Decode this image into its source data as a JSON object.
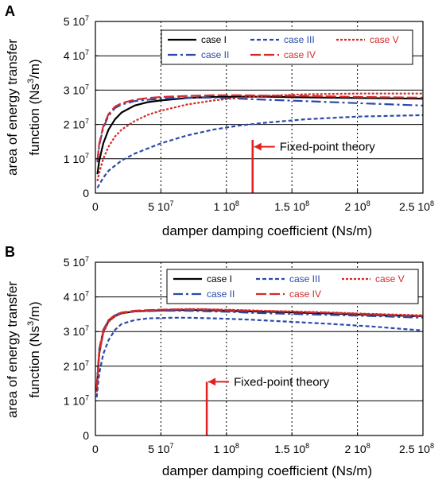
{
  "chart_data": [
    {
      "type": "line",
      "panel": "A",
      "xlabel": "damper damping coefficient (Ns/m)",
      "ylabel": [
        "area of energy transfer",
        "function (Ns",
        "3",
        "/m)"
      ],
      "xlim": [
        0,
        250000000
      ],
      "ylim": [
        0,
        50000000
      ],
      "xticks": [
        {
          "v": 0,
          "m": "0",
          "e": ""
        },
        {
          "v": 50000000,
          "m": "5 10",
          "e": "7"
        },
        {
          "v": 100000000,
          "m": "1 10",
          "e": "8"
        },
        {
          "v": 150000000,
          "m": "1.5 10",
          "e": "8"
        },
        {
          "v": 200000000,
          "m": "2 10",
          "e": "8"
        },
        {
          "v": 250000000,
          "m": "2.5 10",
          "e": "8"
        }
      ],
      "yticks": [
        {
          "v": 0,
          "m": "0",
          "e": ""
        },
        {
          "v": 10000000,
          "m": "1 10",
          "e": "7"
        },
        {
          "v": 20000000,
          "m": "2 10",
          "e": "7"
        },
        {
          "v": 30000000,
          "m": "3 10",
          "e": "7"
        },
        {
          "v": 40000000,
          "m": "4 10",
          "e": "7"
        },
        {
          "v": 50000000,
          "m": "5 10",
          "e": "7"
        }
      ],
      "grid": true,
      "legend_position": "top",
      "annotation": {
        "text": "Fixed-point theory",
        "x_value": 120000000,
        "arrow_y_value": 13500000
      },
      "series": [
        {
          "name": "case I",
          "color": "#000000",
          "style": "solid",
          "x": [
            1500000,
            3000000,
            6000000,
            10000000,
            15000000,
            20000000,
            30000000,
            40000000,
            50000000,
            70000000,
            90000000,
            110000000,
            130000000,
            160000000,
            200000000,
            250000000
          ],
          "y": [
            5500000,
            9500000,
            14500000,
            18500000,
            21500000,
            23500000,
            25500000,
            26500000,
            27000000,
            27700000,
            28000000,
            28100000,
            28100000,
            27900000,
            27700000,
            27500000
          ]
        },
        {
          "name": "case II",
          "color": "#2a4aa8",
          "style": "dashdot",
          "x": [
            1500000,
            3000000,
            6000000,
            10000000,
            15000000,
            20000000,
            30000000,
            40000000,
            50000000,
            70000000,
            90000000,
            110000000,
            130000000,
            160000000,
            200000000,
            250000000
          ],
          "y": [
            9000000,
            14000000,
            19000000,
            22500000,
            24800000,
            25800000,
            26800000,
            27200000,
            27500000,
            27800000,
            27800000,
            27500000,
            27200000,
            26800000,
            26200000,
            25500000
          ]
        },
        {
          "name": "case III",
          "color": "#2a4aa8",
          "style": "dashed",
          "x": [
            1500000,
            3000000,
            6000000,
            10000000,
            15000000,
            20000000,
            30000000,
            40000000,
            50000000,
            70000000,
            90000000,
            110000000,
            130000000,
            160000000,
            200000000,
            250000000
          ],
          "y": [
            1500000,
            2500000,
            4500000,
            6500000,
            8000000,
            9500000,
            11500000,
            13000000,
            14500000,
            16800000,
            18500000,
            19700000,
            20500000,
            21500000,
            22300000,
            22700000
          ]
        },
        {
          "name": "case IV",
          "color": "#d42a2a",
          "style": "longdash",
          "x": [
            1500000,
            3000000,
            6000000,
            10000000,
            15000000,
            20000000,
            30000000,
            40000000,
            50000000,
            70000000,
            90000000,
            110000000,
            130000000,
            160000000,
            200000000,
            250000000
          ],
          "y": [
            9500000,
            14500000,
            19500000,
            23000000,
            25200000,
            26200000,
            27200000,
            27700000,
            28000000,
            28300000,
            28500000,
            28500000,
            28400000,
            28300000,
            28000000,
            27800000
          ]
        },
        {
          "name": "case V",
          "color": "#d42a2a",
          "style": "dotted",
          "x": [
            1500000,
            3000000,
            6000000,
            10000000,
            15000000,
            20000000,
            30000000,
            40000000,
            50000000,
            70000000,
            90000000,
            110000000,
            130000000,
            160000000,
            200000000,
            250000000
          ],
          "y": [
            3500000,
            6000000,
            10000000,
            13500000,
            16500000,
            18500000,
            21000000,
            22800000,
            24000000,
            25800000,
            27000000,
            27800000,
            28300000,
            28800000,
            29000000,
            29000000
          ]
        }
      ]
    },
    {
      "type": "line",
      "panel": "B",
      "xlabel": "damper damping coefficient (Ns/m)",
      "ylabel": [
        "area of energy transfer",
        "function (Ns",
        "3",
        "/m)"
      ],
      "xlim": [
        0,
        250000000
      ],
      "ylim": [
        0,
        50000000
      ],
      "xticks": [
        {
          "v": 0,
          "m": "0",
          "e": ""
        },
        {
          "v": 50000000,
          "m": "5 10",
          "e": "7"
        },
        {
          "v": 100000000,
          "m": "1 10",
          "e": "8"
        },
        {
          "v": 150000000,
          "m": "1.5 10",
          "e": "8"
        },
        {
          "v": 200000000,
          "m": "2 10",
          "e": "8"
        },
        {
          "v": 250000000,
          "m": "2.5 10",
          "e": "8"
        }
      ],
      "yticks": [
        {
          "v": 0,
          "m": "0",
          "e": ""
        },
        {
          "v": 10000000,
          "m": "1 10",
          "e": "7"
        },
        {
          "v": 20000000,
          "m": "2 10",
          "e": "7"
        },
        {
          "v": 30000000,
          "m": "3 10",
          "e": "7"
        },
        {
          "v": 40000000,
          "m": "4 10",
          "e": "7"
        },
        {
          "v": 50000000,
          "m": "5 10",
          "e": "7"
        }
      ],
      "grid": true,
      "legend_position": "top",
      "annotation": {
        "text": "Fixed-point theory",
        "x_value": 85000000,
        "arrow_y_value": 15500000
      },
      "series": [
        {
          "name": "case I",
          "color": "#000000",
          "style": "solid",
          "x": [
            1000000,
            3000000,
            6000000,
            10000000,
            15000000,
            20000000,
            30000000,
            40000000,
            50000000,
            60000000,
            70000000,
            80000000,
            90000000,
            100000000,
            120000000,
            150000000,
            180000000,
            210000000,
            250000000
          ],
          "y": [
            13000000,
            24000000,
            30000000,
            33000000,
            34500000,
            35300000,
            35800000,
            36000000,
            36100000,
            36200000,
            36200000,
            36200000,
            36100000,
            36000000,
            35800000,
            35500000,
            35200000,
            34800000,
            34400000
          ]
        },
        {
          "name": "case II",
          "color": "#2a4aa8",
          "style": "dashdot",
          "x": [
            1000000,
            3000000,
            6000000,
            10000000,
            15000000,
            20000000,
            30000000,
            40000000,
            50000000,
            60000000,
            70000000,
            80000000,
            90000000,
            100000000,
            120000000,
            150000000,
            180000000,
            210000000,
            250000000
          ],
          "y": [
            14000000,
            25000000,
            30500000,
            33300000,
            34700000,
            35400000,
            35800000,
            35900000,
            36000000,
            36000000,
            36000000,
            35900000,
            35800000,
            35700000,
            35400000,
            35100000,
            34800000,
            34500000,
            34000000
          ]
        },
        {
          "name": "case III",
          "color": "#2a4aa8",
          "style": "dashed",
          "x": [
            1000000,
            3000000,
            6000000,
            10000000,
            15000000,
            20000000,
            30000000,
            40000000,
            50000000,
            60000000,
            70000000,
            80000000,
            90000000,
            100000000,
            120000000,
            150000000,
            180000000,
            210000000,
            250000000
          ],
          "y": [
            11000000,
            18000000,
            23500000,
            27500000,
            30500000,
            32200000,
            33300000,
            33800000,
            33900000,
            34000000,
            34000000,
            33900000,
            33800000,
            33700000,
            33400000,
            32800000,
            32200000,
            31500000,
            30300000
          ]
        },
        {
          "name": "case IV",
          "color": "#d42a2a",
          "style": "longdash",
          "x": [
            1000000,
            3000000,
            6000000,
            10000000,
            15000000,
            20000000,
            30000000,
            40000000,
            50000000,
            60000000,
            70000000,
            80000000,
            90000000,
            100000000,
            120000000,
            150000000,
            180000000,
            210000000,
            250000000
          ],
          "y": [
            13500000,
            24500000,
            30200000,
            33300000,
            34800000,
            35500000,
            36000000,
            36200000,
            36300000,
            36400000,
            36400000,
            36400000,
            36300000,
            36200000,
            36000000,
            35700000,
            35400000,
            35000000,
            34500000
          ]
        },
        {
          "name": "case V",
          "color": "#d42a2a",
          "style": "dotted",
          "x": [
            1000000,
            3000000,
            6000000,
            10000000,
            15000000,
            20000000,
            30000000,
            40000000,
            50000000,
            60000000,
            70000000,
            80000000,
            90000000,
            100000000,
            120000000,
            150000000,
            180000000,
            210000000,
            250000000
          ],
          "y": [
            12500000,
            23500000,
            29500000,
            32800000,
            34400000,
            35200000,
            35800000,
            36100000,
            36300000,
            36400000,
            36500000,
            36500000,
            36400000,
            36300000,
            36100000,
            35800000,
            35500000,
            35100000,
            34700000
          ]
        }
      ]
    }
  ]
}
